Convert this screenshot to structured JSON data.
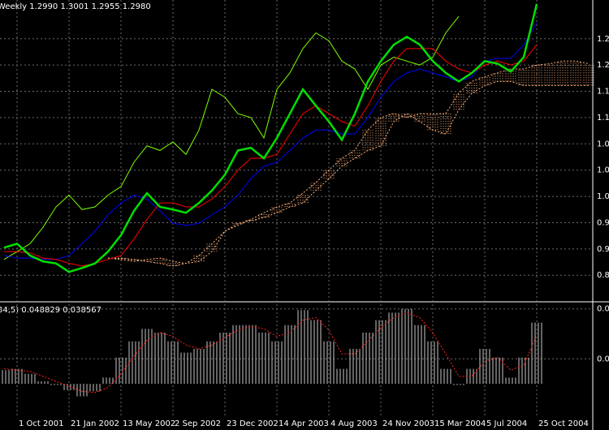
{
  "chart_data": [
    {
      "type": "line",
      "header": "Weekly 1.2990 1.3001 1.2955 1.2980",
      "categories": [
        null,
        "1 Oct 2001",
        null,
        null,
        null,
        "21 Jan 2002",
        null,
        null,
        null,
        "13 May 2002",
        null,
        null,
        null,
        "2 Sep 2002",
        null,
        null,
        null,
        "23 Dec 2002",
        null,
        null,
        null,
        "14 Apr 2003",
        null,
        null,
        null,
        "4 Aug 2003",
        null,
        null,
        null,
        "24 Nov 2003",
        null,
        null,
        null,
        "15 Mar 2004",
        null,
        null,
        null,
        "5 Jul 2004",
        null,
        null,
        null,
        "25 Oct 2004",
        null,
        null,
        null,
        null
      ],
      "ylim": [
        0.847,
        1.304
      ],
      "yticks": [
        {
          "value": 1.245,
          "label": "1.2"
        },
        {
          "value": 1.205,
          "label": "1.2"
        },
        {
          "value": 1.165,
          "label": "1.1"
        },
        {
          "value": 1.125,
          "label": "1.1"
        },
        {
          "value": 1.085,
          "label": "1.0"
        },
        {
          "value": 1.045,
          "label": "1.0"
        },
        {
          "value": 1.005,
          "label": "1.0"
        },
        {
          "value": 0.965,
          "label": "0.9"
        },
        {
          "value": 0.925,
          "label": "0.9"
        },
        {
          "value": 0.885,
          "label": "0.8"
        }
      ],
      "grid": true,
      "cloud": {
        "color": "#ffb07a",
        "span_a": [
          null,
          null,
          null,
          null,
          null,
          null,
          null,
          null,
          0.911,
          0.911,
          0.909,
          0.906,
          0.903,
          0.899,
          0.903,
          0.915,
          0.933,
          0.952,
          0.964,
          0.968,
          0.973,
          0.98,
          0.989,
          0.995,
          1.014,
          1.032,
          1.051,
          1.063,
          1.075,
          1.082,
          1.119,
          1.131,
          1.119,
          1.106,
          1.1,
          1.137,
          1.162,
          1.174,
          1.18,
          1.18,
          1.174,
          1.174,
          1.174,
          1.174,
          1.174,
          1.174
        ],
        "span_b": [
          null,
          null,
          null,
          null,
          null,
          null,
          null,
          null,
          0.911,
          0.909,
          0.906,
          0.909,
          0.911,
          0.906,
          0.903,
          0.906,
          0.921,
          0.952,
          0.961,
          0.97,
          0.98,
          0.989,
          0.995,
          1.01,
          1.026,
          1.045,
          1.063,
          1.075,
          1.106,
          1.125,
          1.131,
          1.125,
          1.131,
          1.131,
          1.131,
          1.162,
          1.18,
          1.187,
          1.193,
          1.199,
          1.199,
          1.205,
          1.207,
          1.211,
          1.211,
          1.207
        ]
      },
      "series": [
        {
          "color": "#7fff00",
          "width": 1,
          "values": [
            0.909,
            0.921,
            0.933,
            0.958,
            0.989,
            1.007,
            0.985,
            0.989,
            1.007,
            1.02,
            1.057,
            1.082,
            1.075,
            1.088,
            1.069,
            1.106,
            1.168,
            1.156,
            1.131,
            1.125,
            1.094,
            1.168,
            1.193,
            1.23,
            1.254,
            1.242,
            1.211,
            1.199,
            1.168,
            1.205,
            1.217,
            1.211,
            1.205,
            1.217,
            1.254,
            1.279,
            null,
            null,
            null,
            null,
            null,
            null,
            null,
            null,
            null,
            null
          ]
        },
        {
          "color": "#0000ff",
          "width": 1,
          "values": [
            0.915,
            0.911,
            0.911,
            0.909,
            0.909,
            0.915,
            0.933,
            0.952,
            0.977,
            0.995,
            1.007,
            1.001,
            0.983,
            0.964,
            0.961,
            0.964,
            0.977,
            0.989,
            1.007,
            1.032,
            1.051,
            1.057,
            1.075,
            1.094,
            1.106,
            1.106,
            1.1,
            1.1,
            1.125,
            1.156,
            1.18,
            1.193,
            1.199,
            1.193,
            1.187,
            1.18,
            1.187,
            1.211,
            1.215,
            1.215,
            1.236,
            1.269,
            null,
            null,
            null,
            null
          ]
        },
        {
          "color": "#ff0000",
          "width": 1,
          "values": [
            0.921,
            0.921,
            0.919,
            0.911,
            0.909,
            0.903,
            0.899,
            0.903,
            0.909,
            0.915,
            0.94,
            0.97,
            0.995,
            0.995,
            0.989,
            0.989,
            1.001,
            1.02,
            1.045,
            1.063,
            1.063,
            1.069,
            1.1,
            1.131,
            1.143,
            1.131,
            1.119,
            1.112,
            1.143,
            1.18,
            1.211,
            1.23,
            1.23,
            1.23,
            1.211,
            1.199,
            1.193,
            1.205,
            1.211,
            1.205,
            1.211,
            1.236,
            null,
            null,
            null,
            null
          ]
        },
        {
          "color": "#00e000",
          "width": 2.5,
          "values": [
            0.927,
            0.933,
            0.915,
            0.906,
            0.903,
            0.89,
            0.896,
            0.903,
            0.921,
            0.946,
            0.983,
            1.01,
            0.989,
            0.985,
            0.98,
            0.995,
            1.014,
            1.038,
            1.075,
            1.079,
            1.063,
            1.094,
            1.131,
            1.168,
            1.143,
            1.119,
            1.091,
            1.131,
            1.18,
            1.211,
            1.236,
            1.248,
            1.236,
            1.211,
            1.193,
            1.18,
            1.193,
            1.211,
            1.207,
            1.195,
            1.217,
            1.298,
            null,
            null,
            null,
            null
          ]
        }
      ]
    },
    {
      "type": "bar",
      "header": "34,5) 0.048829 0.038567",
      "color": "#c8c8c8",
      "ylim": [
        -0.035,
        0.065
      ],
      "yticks": [
        {
          "value": 0.06,
          "label": "0.0"
        },
        {
          "value": 0.02,
          "label": "0.0"
        }
      ],
      "grid": true,
      "values": [
        0.011,
        0.012,
        0.008,
        0.002,
        -0.001,
        -0.005,
        -0.01,
        -0.006,
        0.005,
        0.021,
        0.034,
        0.044,
        0.041,
        0.034,
        0.025,
        0.028,
        0.034,
        0.041,
        0.047,
        0.047,
        0.041,
        0.034,
        0.047,
        0.059,
        0.051,
        0.034,
        0.012,
        0.028,
        0.041,
        0.051,
        0.057,
        0.06,
        0.047,
        0.034,
        0.012,
        -0.001,
        0.012,
        0.028,
        0.021,
        0.005,
        0.021,
        0.049,
        null,
        null,
        null,
        null
      ],
      "signal": {
        "color": "#ff2020",
        "values": [
          0.012,
          0.011,
          0.01,
          0.006,
          0.002,
          -0.002,
          -0.006,
          -0.007,
          -0.003,
          0.008,
          0.022,
          0.035,
          0.041,
          0.038,
          0.031,
          0.028,
          0.031,
          0.037,
          0.043,
          0.046,
          0.044,
          0.038,
          0.041,
          0.051,
          0.053,
          0.043,
          0.024,
          0.024,
          0.034,
          0.045,
          0.053,
          0.057,
          0.053,
          0.041,
          0.024,
          0.006,
          0.006,
          0.018,
          0.021,
          0.011,
          0.015,
          0.039,
          null,
          null,
          null,
          null
        ]
      }
    }
  ]
}
